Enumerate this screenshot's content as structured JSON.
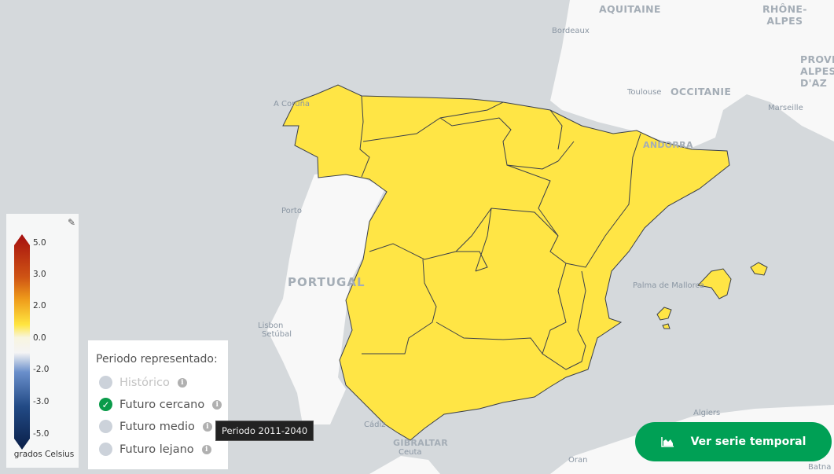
{
  "map": {
    "fill_color": "#ffe545",
    "labels": {
      "aquitaine": "AQUITAINE",
      "rhone": "RHÔNE-\nALPES",
      "provence": "PROVE\nALPES-\nD'AZ",
      "occitanie": "OCCITANIE",
      "bordeaux": "Bordeaux",
      "toulouse": "Toulouse",
      "marseille": "Marseille",
      "acoruna": "A Coruña",
      "porto": "Porto",
      "portugal": "PORTUGAL",
      "lisbon": "Lisbon",
      "setubal": "Setúbal",
      "palma": "Palma de Mallorca",
      "algiers": "Algiers",
      "oran": "Oran",
      "cadiz": "Cádiz",
      "ceuta": "Ceuta",
      "gibraltar": "GIBRALTAR",
      "andorra": "ANDORRA",
      "batna": "Batna"
    }
  },
  "legend": {
    "ticks": [
      "5.0",
      "3.0",
      "2.0",
      "0.0",
      "-2.0",
      "-3.0",
      "-5.0"
    ],
    "unit": "grados Celsius",
    "edit_icon": "edit-icon"
  },
  "period": {
    "title": "Periodo representado:",
    "options": [
      {
        "label": "Histórico",
        "state": "disabled"
      },
      {
        "label": "Futuro cercano",
        "state": "selected"
      },
      {
        "label": "Futuro medio",
        "state": "unselected"
      },
      {
        "label": "Futuro lejano",
        "state": "unselected"
      }
    ],
    "tooltip": "Periodo 2011-2040"
  },
  "button": {
    "label": "Ver serie temporal",
    "icon": "area-chart-icon",
    "color": "#00a055"
  }
}
